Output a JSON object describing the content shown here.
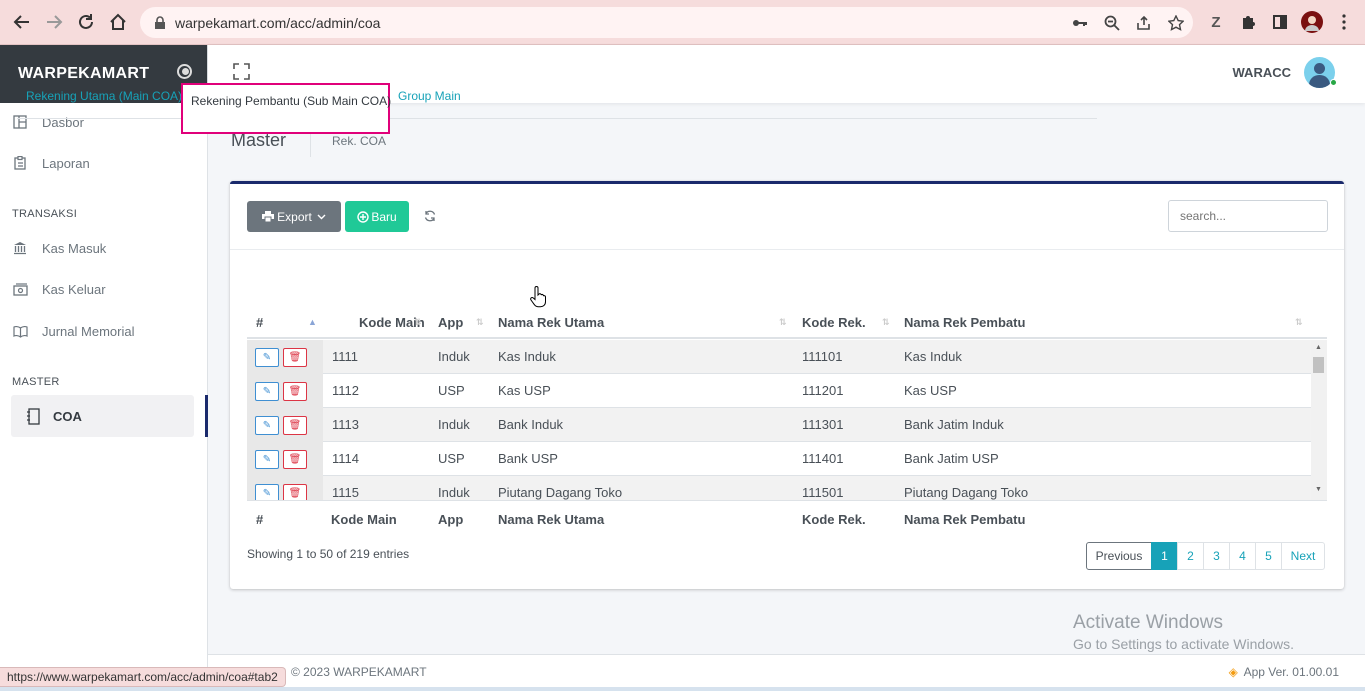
{
  "browser": {
    "url": "warpekamart.com/acc/admin/coa",
    "status_url": "https://www.warpekamart.com/acc/admin/coa#tab2"
  },
  "sidebar": {
    "brand": "WARPEKAMART",
    "items_top": [
      {
        "label": "Dasbor",
        "icon": "dashboard-icon"
      },
      {
        "label": "Laporan",
        "icon": "report-icon"
      }
    ],
    "section_transaksi": "TRANSAKSI",
    "items_transaksi": [
      {
        "label": "Kas Masuk",
        "icon": "bank-icon"
      },
      {
        "label": "Kas Keluar",
        "icon": "money-icon"
      },
      {
        "label": "Jurnal Memorial",
        "icon": "book-icon"
      }
    ],
    "section_master": "MASTER",
    "active_item": "COA"
  },
  "topbar": {
    "user": "WARACC"
  },
  "page": {
    "title": "Master",
    "breadcrumb": "Rek. COA"
  },
  "toolbar": {
    "export_label": "Export",
    "new_label": "Baru",
    "search_placeholder": "search..."
  },
  "tabs": [
    {
      "label": "Rekening Utama (Main COA)",
      "active": false
    },
    {
      "label": "Rekening Pembantu (Sub Main COA)",
      "active": true
    },
    {
      "label": "Group Main",
      "active": false
    }
  ],
  "table": {
    "columns": [
      "#",
      "Kode Main",
      "App",
      "Nama Rek Utama",
      "Kode Rek.",
      "Nama Rek Pembatu"
    ],
    "rows": [
      {
        "kode_main": "1111",
        "app": "Induk",
        "nama_utama": "Kas Induk",
        "kode_rek": "111101",
        "nama_pembantu": "Kas Induk"
      },
      {
        "kode_main": "1112",
        "app": "USP",
        "nama_utama": "Kas USP",
        "kode_rek": "111201",
        "nama_pembantu": "Kas USP"
      },
      {
        "kode_main": "1113",
        "app": "Induk",
        "nama_utama": "Bank Induk",
        "kode_rek": "111301",
        "nama_pembantu": "Bank Jatim Induk"
      },
      {
        "kode_main": "1114",
        "app": "USP",
        "nama_utama": "Bank USP",
        "kode_rek": "111401",
        "nama_pembantu": "Bank Jatim USP"
      },
      {
        "kode_main": "1115",
        "app": "Induk",
        "nama_utama": "Piutang Dagang Toko",
        "kode_rek": "111501",
        "nama_pembantu": "Piutang Dagang Toko"
      }
    ],
    "info": "Showing 1 to 50 of 219 entries"
  },
  "pagination": {
    "previous": "Previous",
    "pages": [
      "1",
      "2",
      "3",
      "4",
      "5"
    ],
    "active": "1",
    "next": "Next"
  },
  "watermark": {
    "line1": "Activate Windows",
    "line2": "Go to Settings to activate Windows."
  },
  "footer": {
    "copyright": "© 2023 WARPEKAMART",
    "version": "App Ver. 01.00.01"
  },
  "colors": {
    "brand_dark": "#343a40",
    "accent_navy": "#1a2a6c",
    "teal": "#17a2b8",
    "green": "#20c997",
    "highlight_box": "#e0007a"
  }
}
